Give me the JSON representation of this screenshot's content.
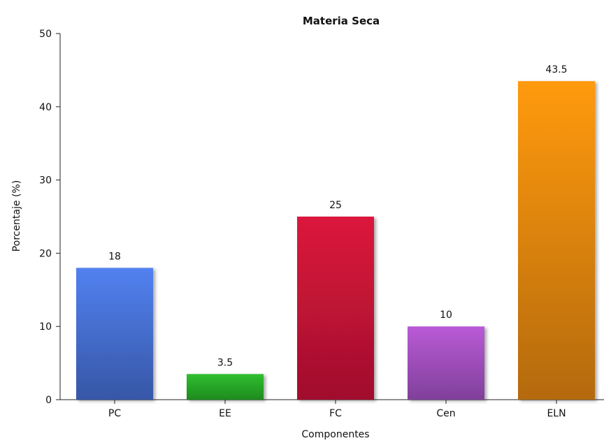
{
  "chart_data": {
    "type": "bar",
    "title": "Materia Seca",
    "xlabel": "Componentes",
    "ylabel": "Porcentaje (%)",
    "categories": [
      "PC",
      "EE",
      "FC",
      "Cen",
      "ELN"
    ],
    "values": [
      18,
      3.5,
      25,
      10,
      43.5
    ],
    "data_labels": [
      "18",
      "3.5",
      "25",
      "10",
      "43.5"
    ],
    "ylim": [
      0,
      50
    ],
    "yticks": [
      0,
      10,
      20,
      30,
      40,
      50
    ],
    "ytick_labels": [
      "0",
      "10",
      "20",
      "30",
      "40",
      "50"
    ],
    "grid": false,
    "legend": "none",
    "colors": [
      {
        "top": "#5281f0",
        "bottom": "#3657a6"
      },
      {
        "top": "#2fbf2f",
        "bottom": "#1e8a1e"
      },
      {
        "top": "#dc143c",
        "bottom": "#a0102d"
      },
      {
        "top": "#b95ad6",
        "bottom": "#80409a"
      },
      {
        "top": "#ff9a0a",
        "bottom": "#b46a08"
      }
    ]
  }
}
